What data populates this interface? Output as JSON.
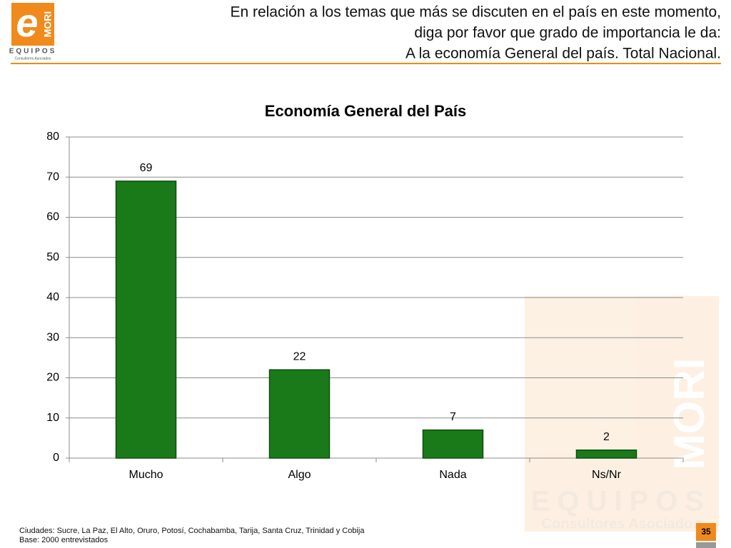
{
  "header": {
    "lines": [
      "En relación a los temas que más se discuten en el país en este momento,",
      "diga por favor que grado de importancia le da:",
      "A la economía General del país. Total Nacional."
    ]
  },
  "logo": {
    "mark": "e",
    "brand": "MORI",
    "name": "EQUIPOS",
    "subtitle": "Consultores Asociados"
  },
  "chart_data": {
    "type": "bar",
    "title": "Economía General del País",
    "categories": [
      "Mucho",
      "Algo",
      "Nada",
      "Ns/Nr"
    ],
    "values": [
      69,
      22,
      7,
      2
    ],
    "color": "#1a7a1a",
    "ylim": [
      0,
      80
    ],
    "yticks": [
      0,
      10,
      20,
      30,
      40,
      50,
      60,
      70,
      80
    ],
    "grid": true
  },
  "footer": {
    "lines": [
      "Ciudades: Sucre, La Paz, El Alto, Oruro, Potosí, Cochabamba, Tarija, Santa Cruz, Trinidad y Cobija",
      "Base: 2000 entrevistados"
    ],
    "page": "35"
  }
}
